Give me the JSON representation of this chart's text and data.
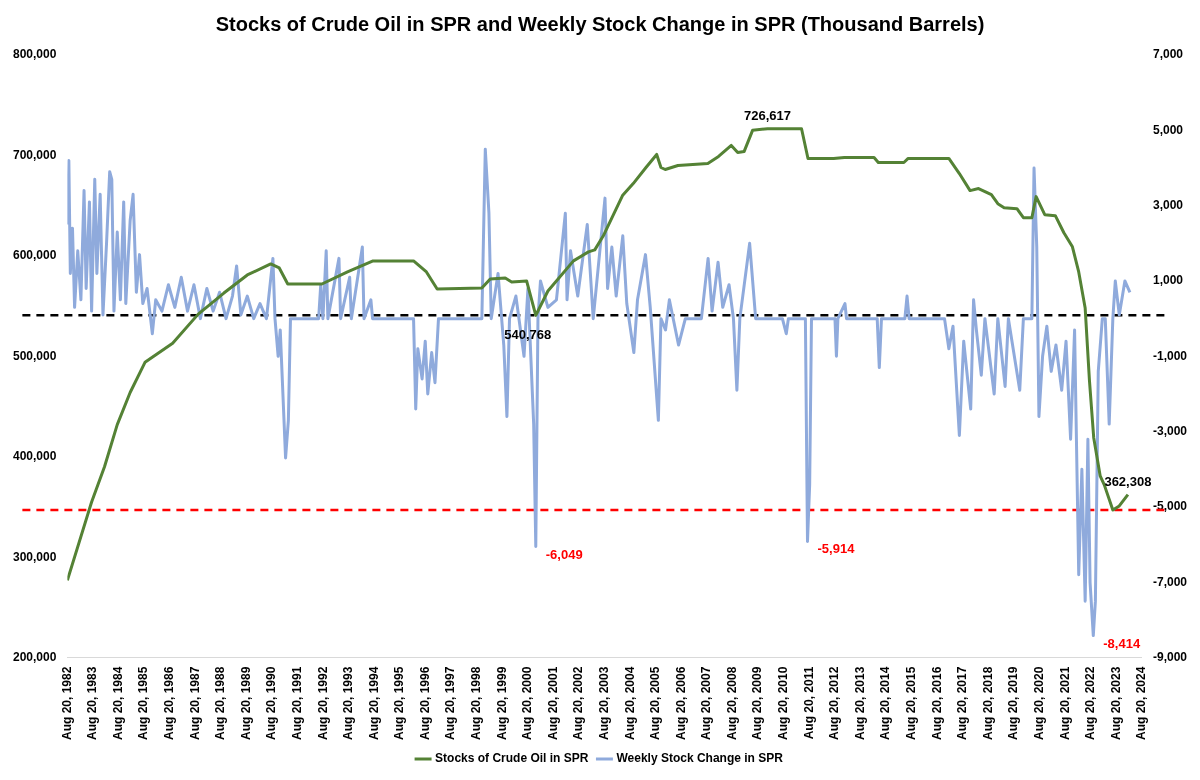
{
  "chart_data": {
    "type": "line",
    "title": "Stocks of Crude Oil in SPR and Weekly Stock Change in SPR (Thousand Barrels)",
    "xlim": [
      "1982-08-20",
      "2024-08-20"
    ],
    "xticks": [
      {
        "value": "1982-08-20",
        "label": "Aug 20, 1982"
      },
      {
        "value": "1983-08-20",
        "label": "Aug 20, 1983"
      },
      {
        "value": "1984-08-20",
        "label": "Aug 20, 1984"
      },
      {
        "value": "1985-08-20",
        "label": "Aug 20, 1985"
      },
      {
        "value": "1986-08-20",
        "label": "Aug 20, 1986"
      },
      {
        "value": "1987-08-20",
        "label": "Aug 20, 1987"
      },
      {
        "value": "1988-08-20",
        "label": "Aug 20, 1988"
      },
      {
        "value": "1989-08-20",
        "label": "Aug 20, 1989"
      },
      {
        "value": "1990-08-20",
        "label": "Aug 20, 1990"
      },
      {
        "value": "1991-08-20",
        "label": "Aug 20, 1991"
      },
      {
        "value": "1992-08-20",
        "label": "Aug 20, 1992"
      },
      {
        "value": "1993-08-20",
        "label": "Aug 20, 1993"
      },
      {
        "value": "1994-08-20",
        "label": "Aug 20, 1994"
      },
      {
        "value": "1995-08-20",
        "label": "Aug 20, 1995"
      },
      {
        "value": "1996-08-20",
        "label": "Aug 20, 1996"
      },
      {
        "value": "1997-08-20",
        "label": "Aug 20, 1997"
      },
      {
        "value": "1998-08-20",
        "label": "Aug 20, 1998"
      },
      {
        "value": "1999-08-20",
        "label": "Aug 20, 1999"
      },
      {
        "value": "2000-08-20",
        "label": "Aug 20, 2000"
      },
      {
        "value": "2001-08-20",
        "label": "Aug 20, 2001"
      },
      {
        "value": "2002-08-20",
        "label": "Aug 20, 2002"
      },
      {
        "value": "2003-08-20",
        "label": "Aug 20, 2003"
      },
      {
        "value": "2004-08-20",
        "label": "Aug 20, 2004"
      },
      {
        "value": "2005-08-20",
        "label": "Aug 20, 2005"
      },
      {
        "value": "2006-08-20",
        "label": "Aug 20, 2006"
      },
      {
        "value": "2007-08-20",
        "label": "Aug 20, 2007"
      },
      {
        "value": "2008-08-20",
        "label": "Aug 20, 2008"
      },
      {
        "value": "2009-08-20",
        "label": "Aug 20, 2009"
      },
      {
        "value": "2010-08-20",
        "label": "Aug 20, 2010"
      },
      {
        "value": "2011-08-20",
        "label": "Aug 20, 2011"
      },
      {
        "value": "2012-08-20",
        "label": "Aug 20, 2012"
      },
      {
        "value": "2013-08-20",
        "label": "Aug 20, 2013"
      },
      {
        "value": "2014-08-20",
        "label": "Aug 20, 2014"
      },
      {
        "value": "2015-08-20",
        "label": "Aug 20, 2015"
      },
      {
        "value": "2016-08-20",
        "label": "Aug 20, 2016"
      },
      {
        "value": "2017-08-20",
        "label": "Aug 20, 2017"
      },
      {
        "value": "2018-08-20",
        "label": "Aug 20, 2018"
      },
      {
        "value": "2019-08-20",
        "label": "Aug 20, 2019"
      },
      {
        "value": "2020-08-20",
        "label": "Aug 20, 2020"
      },
      {
        "value": "2021-08-20",
        "label": "Aug 20, 2021"
      },
      {
        "value": "2022-08-20",
        "label": "Aug 20, 2022"
      },
      {
        "value": "2023-08-20",
        "label": "Aug 20, 2023"
      },
      {
        "value": "2024-08-20",
        "label": "Aug 20, 2024"
      }
    ],
    "ylim": [
      200000,
      800000
    ],
    "yticks": [
      {
        "value": 200000,
        "label": "200,000"
      },
      {
        "value": 300000,
        "label": "300,000"
      },
      {
        "value": 400000,
        "label": "400,000"
      },
      {
        "value": 500000,
        "label": "500,000"
      },
      {
        "value": 600000,
        "label": "600,000"
      },
      {
        "value": 700000,
        "label": "700,000"
      },
      {
        "value": 800000,
        "label": "800,000"
      }
    ],
    "y2lim": [
      -9000,
      7000
    ],
    "y2ticks": [
      {
        "value": -9000,
        "label": "-9,000"
      },
      {
        "value": -7000,
        "label": "-7,000"
      },
      {
        "value": -5000,
        "label": "-5,000"
      },
      {
        "value": -3000,
        "label": "-3,000"
      },
      {
        "value": -1000,
        "label": "-1,000"
      },
      {
        "value": 1000,
        "label": "1,000"
      },
      {
        "value": 3000,
        "label": "3,000"
      },
      {
        "value": 5000,
        "label": "5,000"
      },
      {
        "value": 7000,
        "label": "7,000"
      }
    ],
    "marker": "none",
    "legend": "bottom",
    "ref_lines": [
      {
        "axis": "y",
        "value": 540768,
        "color": "#000000",
        "line_style": "dashed"
      },
      {
        "axis": "y",
        "value": 347000,
        "color": "#ff0000",
        "line_style": "dashed"
      }
    ],
    "annotations": [
      {
        "text": "726,617",
        "x": "2010-01-01",
        "y": 726617
      },
      {
        "text": "540,768",
        "x": "2000-12-10",
        "y": 540768
      },
      {
        "text": "362,308",
        "x": "2024-02-01",
        "y": 362308
      },
      "-6,049",
      "-5,914",
      "-8,414"
    ],
    "series": [
      {
        "name": "Stocks of Crude Oil in SPR",
        "color": "#548235",
        "x": [
          "1982-08-20",
          "1983-08-01",
          "1984-02-01",
          "1984-08-01",
          "1985-02-01",
          "1985-09-01",
          "1986-10-01",
          "1987-10-01",
          "1988-10-01",
          "1989-09-01",
          "1990-08-01",
          "1990-12-01",
          "1991-04-01",
          "1992-08-01",
          "1993-08-01",
          "1994-08-01",
          "1996-03-01",
          "1996-09-01",
          "1997-02-01",
          "1998-11-01",
          "1999-03-01",
          "1999-10-01",
          "2000-01-01",
          "2000-08-01",
          "2000-12-10",
          "2001-06-01",
          "2002-06-01",
          "2003-01-01",
          "2003-04-01",
          "2003-08-01",
          "2004-05-01",
          "2004-10-01",
          "2005-04-01",
          "2005-09-01",
          "2005-11-01",
          "2006-01-01",
          "2006-07-01",
          "2007-09-01",
          "2008-02-01",
          "2008-08-01",
          "2008-11-01",
          "2009-02-01",
          "2009-06-01",
          "2010-01-01",
          "2011-05-01",
          "2011-08-01",
          "2012-08-01",
          "2013-01-01",
          "2014-03-01",
          "2014-05-01",
          "2015-05-01",
          "2015-07-01",
          "2017-02-01",
          "2017-07-01",
          "2017-12-01",
          "2018-04-01",
          "2018-10-01",
          "2019-01-01",
          "2019-04-01",
          "2019-10-01",
          "2020-01-01",
          "2020-05-01",
          "2020-07-01",
          "2020-11-01",
          "2021-04-01",
          "2021-08-01",
          "2021-12-01",
          "2022-03-01",
          "2022-06-01",
          "2022-08-01",
          "2022-10-01",
          "2023-01-01",
          "2023-03-01",
          "2023-07-01",
          "2023-10-01",
          "2024-02-01"
        ],
        "values": [
          277000,
          355000,
          390000,
          432000,
          464000,
          494000,
          513000,
          542000,
          563000,
          581000,
          592000,
          588000,
          572000,
          572000,
          584000,
          595000,
          595000,
          584000,
          567000,
          568000,
          577000,
          578000,
          574000,
          575000,
          540768,
          565000,
          595000,
          604000,
          606000,
          620000,
          660000,
          672000,
          688000,
          701000,
          688000,
          686000,
          690000,
          692000,
          699000,
          710000,
          703000,
          704000,
          725000,
          726617,
          726617,
          697000,
          697000,
          698000,
          698000,
          693000,
          693000,
          697000,
          697000,
          682000,
          665000,
          667000,
          661000,
          652000,
          648000,
          647000,
          638000,
          638000,
          659000,
          641000,
          640000,
          623000,
          609000,
          584000,
          548000,
          476000,
          419000,
          381000,
          372000,
          347000,
          351000,
          362308
        ]
      },
      {
        "name": "Weekly Stock Change in SPR",
        "color": "#8faadc",
        "axis": "y2",
        "x": [
          "1982-08-20",
          "1982-09-10",
          "1982-10-01",
          "1982-11-01",
          "1982-12-01",
          "1983-01-15",
          "1983-03-01",
          "1983-04-15",
          "1983-05-15",
          "1983-07-01",
          "1983-08-01",
          "1983-09-15",
          "1983-10-15",
          "1983-12-01",
          "1984-01-10",
          "1984-03-01",
          "1984-04-15",
          "1984-05-15",
          "1984-06-15",
          "1984-08-01",
          "1984-09-15",
          "1984-11-01",
          "1984-12-01",
          "1985-02-01",
          "1985-03-15",
          "1985-05-01",
          "1985-06-15",
          "1985-08-01",
          "1985-10-01",
          "1985-12-15",
          "1986-02-01",
          "1986-05-01",
          "1986-08-01",
          "1986-11-01",
          "1987-02-01",
          "1987-05-01",
          "1987-08-01",
          "1987-11-01",
          "1988-02-01",
          "1988-05-01",
          "1988-08-01",
          "1988-11-01",
          "1989-02-01",
          "1989-04-01",
          "1989-06-01",
          "1989-09-01",
          "1989-12-01",
          "1990-03-01",
          "1990-06-01",
          "1990-09-01",
          "1990-10-01",
          "1990-11-15",
          "1990-12-15",
          "1991-03-01",
          "1991-04-10",
          "1991-05-10",
          "1992-06-15",
          "1992-07-15",
          "1992-08-15",
          "1992-10-01",
          "1992-10-25",
          "1993-04-01",
          "1993-04-25",
          "1993-09-01",
          "1993-09-25",
          "1994-03-01",
          "1994-03-25",
          "1994-07-01",
          "1994-07-25",
          "1996-03-01",
          "1996-04-01",
          "1996-05-01",
          "1996-07-01",
          "1996-08-15",
          "1996-09-20",
          "1996-11-15",
          "1997-01-01",
          "1997-02-20",
          "1998-11-01",
          "1998-12-20",
          "1999-02-10",
          "1999-03-15",
          "1999-06-20",
          "1999-09-10",
          "1999-10-25",
          "1999-12-01",
          "2000-03-01",
          "2000-06-25",
          "2000-08-20",
          "2000-11-10",
          "2000-12-10",
          "2001-01-10",
          "2001-02-15",
          "2001-06-01",
          "2001-10-01",
          "2002-02-05",
          "2002-03-01",
          "2002-04-20",
          "2002-08-01",
          "2002-12-15",
          "2003-03-10",
          "2003-08-25",
          "2003-10-01",
          "2003-12-01",
          "2004-02-01",
          "2004-05-05",
          "2004-07-01",
          "2004-10-10",
          "2004-12-01",
          "2005-03-25",
          "2005-06-01",
          "2005-09-25",
          "2005-11-01",
          "2006-01-05",
          "2006-03-01",
          "2006-07-10",
          "2006-10-15",
          "2007-06-01",
          "2007-09-05",
          "2007-11-01",
          "2008-01-25",
          "2008-04-01",
          "2008-06-30",
          "2008-09-01",
          "2008-10-20",
          "2008-12-01",
          "2009-04-20",
          "2009-07-15",
          "2010-08-01",
          "2010-09-25",
          "2010-10-25",
          "2011-06-25",
          "2011-07-25",
          "2011-08-25",
          "2011-09-20",
          "2012-08-20",
          "2012-09-10",
          "2012-10-01",
          "2013-01-10",
          "2013-02-01",
          "2014-04-15",
          "2014-05-15",
          "2014-06-15",
          "2015-05-15",
          "2015-06-15",
          "2015-07-15",
          "2016-12-01",
          "2017-02-01",
          "2017-04-01",
          "2017-07-01",
          "2017-09-01",
          "2017-12-10",
          "2018-01-20",
          "2018-03-01",
          "2018-05-10",
          "2018-07-01",
          "2018-11-10",
          "2019-01-01",
          "2019-04-15",
          "2019-06-01",
          "2019-11-10",
          "2020-01-01",
          "2020-05-01",
          "2020-06-01",
          "2020-07-10",
          "2020-08-10",
          "2020-10-01",
          "2020-12-01",
          "2021-02-01",
          "2021-04-10",
          "2021-07-01",
          "2021-09-01",
          "2021-11-05",
          "2022-01-01",
          "2022-03-01",
          "2022-04-15",
          "2022-06-01",
          "2022-07-10",
          "2022-08-10",
          "2022-09-25",
          "2022-10-25",
          "2022-12-05",
          "2023-02-01",
          "2023-03-15",
          "2023-05-10",
          "2023-07-01",
          "2023-08-05",
          "2023-10-01",
          "2023-12-20",
          "2024-03-01"
        ],
        "values": [
          2500,
          4200,
          1200,
          2400,
          300,
          1800,
          500,
          3400,
          800,
          3100,
          200,
          3700,
          1200,
          3300,
          100,
          2000,
          3900,
          3700,
          200,
          2300,
          500,
          3100,
          400,
          2600,
          3300,
          700,
          1700,
          400,
          800,
          -400,
          500,
          200,
          900,
          300,
          1100,
          200,
          900,
          0,
          800,
          200,
          700,
          0,
          600,
          1400,
          100,
          600,
          0,
          400,
          0,
          1600,
          0,
          -1000,
          -300,
          -3700,
          -2700,
          0,
          0,
          900,
          0,
          1800,
          0,
          1600,
          0,
          1100,
          0,
          1900,
          0,
          500,
          0,
          0,
          -2400,
          -800,
          -1600,
          -600,
          -2000,
          -900,
          -1700,
          0,
          0,
          4500,
          2800,
          0,
          1200,
          -700,
          -2600,
          0,
          600,
          -1000,
          800,
          -2800,
          -6049,
          0,
          1000,
          300,
          500,
          2800,
          500,
          1800,
          600,
          2500,
          0,
          3200,
          800,
          1900,
          600,
          2200,
          400,
          -900,
          500,
          1700,
          300,
          -2700,
          0,
          -300,
          500,
          -700,
          0,
          0,
          1600,
          200,
          1500,
          300,
          900,
          0,
          -1900,
          0,
          2000,
          0,
          0,
          -400,
          0,
          0,
          -5914,
          -4400,
          0,
          0,
          -1000,
          0,
          400,
          0,
          0,
          -1300,
          0,
          0,
          600,
          0,
          0,
          -800,
          -200,
          -3100,
          -600,
          -2400,
          500,
          -300,
          -1500,
          0,
          -2000,
          0,
          -1800,
          0,
          -1900,
          0,
          0,
          4000,
          1900,
          -2600,
          -1000,
          -200,
          -1400,
          -700,
          -1900,
          -600,
          -3200,
          -300,
          -6800,
          -4000,
          -7500,
          -3200,
          -7000,
          -8414,
          -7500,
          -1400,
          0,
          0,
          -2800,
          0,
          1000,
          100,
          1000,
          700
        ]
      }
    ]
  }
}
